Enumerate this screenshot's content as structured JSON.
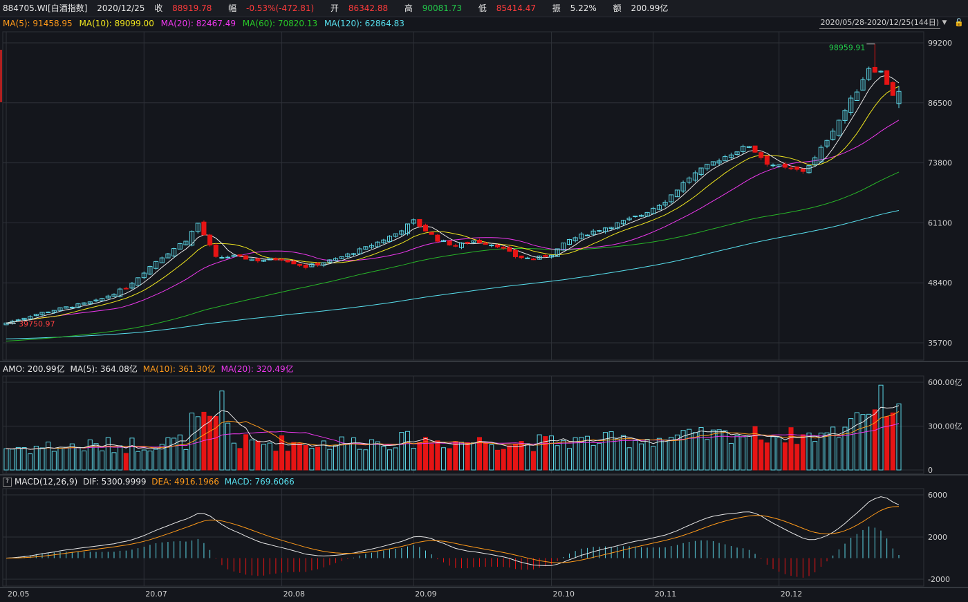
{
  "header": {
    "code": "884705.WI[白酒指数]",
    "date": "2020/12/25",
    "close_label": "收",
    "close": "88919.78",
    "change_label": "幅",
    "change": "-0.53%(-472.81)",
    "open_label": "开",
    "open": "86342.88",
    "high_label": "高",
    "high": "90081.73",
    "low_label": "低",
    "low": "85414.47",
    "amp_label": "振",
    "amp": "5.22%",
    "amount_label": "额",
    "amount": "200.99亿"
  },
  "ma_legend": {
    "ma5": "MA(5): 91458.95",
    "ma10": "MA(10): 89099.00",
    "ma20": "MA(20): 82467.49",
    "ma60": "MA(60): 70820.13",
    "ma120": "MA(120): 62864.83"
  },
  "range_label": "2020/05/28-2020/12/25(144日)",
  "range_arrow": "▼",
  "lock_icon": "lock-icon",
  "vol_legend": {
    "amo": "AMO: 200.99亿",
    "ma5": "MA(5): 364.08亿",
    "ma10": "MA(10): 361.30亿",
    "ma20": "MA(20): 320.49亿"
  },
  "macd_legend": {
    "q": "?",
    "name": "MACD(12,26,9)",
    "dif": "DIF: 5300.9999",
    "dea": "DEA: 4916.1966",
    "macd": "MACD: 769.6066"
  },
  "colors": {
    "up": "#5cd6e6",
    "down": "#e61414",
    "ma5": "#e8e8e8",
    "ma10": "#f0e61e",
    "ma20": "#ee38ee",
    "ma60": "#28b428",
    "ma120": "#58e0ee",
    "dif": "#e8e8e8",
    "dea": "#ff9a1a"
  },
  "chart_data": {
    "type": "candlestick",
    "price_axis": {
      "ticks": [
        "99200",
        "86500",
        "73800",
        "61100",
        "48400",
        "35700"
      ],
      "min": 35700,
      "max": 99200
    },
    "volume_axis": {
      "ticks": [
        "600.00亿",
        "300.00亿",
        "0"
      ],
      "max": 600
    },
    "macd_axis": {
      "ticks": [
        "6000",
        "2000",
        "-2000"
      ]
    },
    "date_ticks": [
      {
        "label": "20.05",
        "index": 0
      },
      {
        "label": "20.07",
        "index": 23
      },
      {
        "label": "20.08",
        "index": 46
      },
      {
        "label": "20.09",
        "index": 68
      },
      {
        "label": "20.10",
        "index": 91
      },
      {
        "label": "20.11",
        "index": 108
      },
      {
        "label": "20.12",
        "index": 129
      }
    ],
    "annotations": {
      "max_label": "98959.91",
      "min_label": "39750.97"
    },
    "anchors": [
      [
        0,
        39900
      ],
      [
        5,
        41800
      ],
      [
        10,
        43200
      ],
      [
        15,
        44500
      ],
      [
        20,
        47400
      ],
      [
        25,
        53000
      ],
      [
        30,
        57500
      ],
      [
        32,
        61000
      ],
      [
        35,
        53700
      ],
      [
        38,
        54000
      ],
      [
        42,
        53200
      ],
      [
        46,
        53500
      ],
      [
        50,
        51800
      ],
      [
        55,
        53400
      ],
      [
        60,
        55800
      ],
      [
        65,
        58800
      ],
      [
        68,
        61500
      ],
      [
        72,
        57500
      ],
      [
        75,
        56200
      ],
      [
        78,
        57300
      ],
      [
        82,
        56300
      ],
      [
        85,
        54000
      ],
      [
        88,
        53400
      ],
      [
        91,
        54500
      ],
      [
        94,
        57500
      ],
      [
        98,
        59300
      ],
      [
        102,
        60900
      ],
      [
        106,
        62800
      ],
      [
        110,
        65800
      ],
      [
        114,
        70700
      ],
      [
        118,
        73900
      ],
      [
        122,
        76400
      ],
      [
        124,
        77500
      ],
      [
        127,
        73800
      ],
      [
        130,
        72600
      ],
      [
        133,
        72100
      ],
      [
        135,
        74700
      ],
      [
        138,
        80900
      ],
      [
        140,
        84900
      ],
      [
        142,
        89200
      ],
      [
        144,
        94000
      ],
      [
        146,
        93000
      ],
      [
        148,
        88300
      ],
      [
        149,
        88900
      ]
    ],
    "note_values": "Candles interpolated from anchor closes; last bar O 86342.88 H 90081.73 L 85414.47 C 88919.78"
  }
}
